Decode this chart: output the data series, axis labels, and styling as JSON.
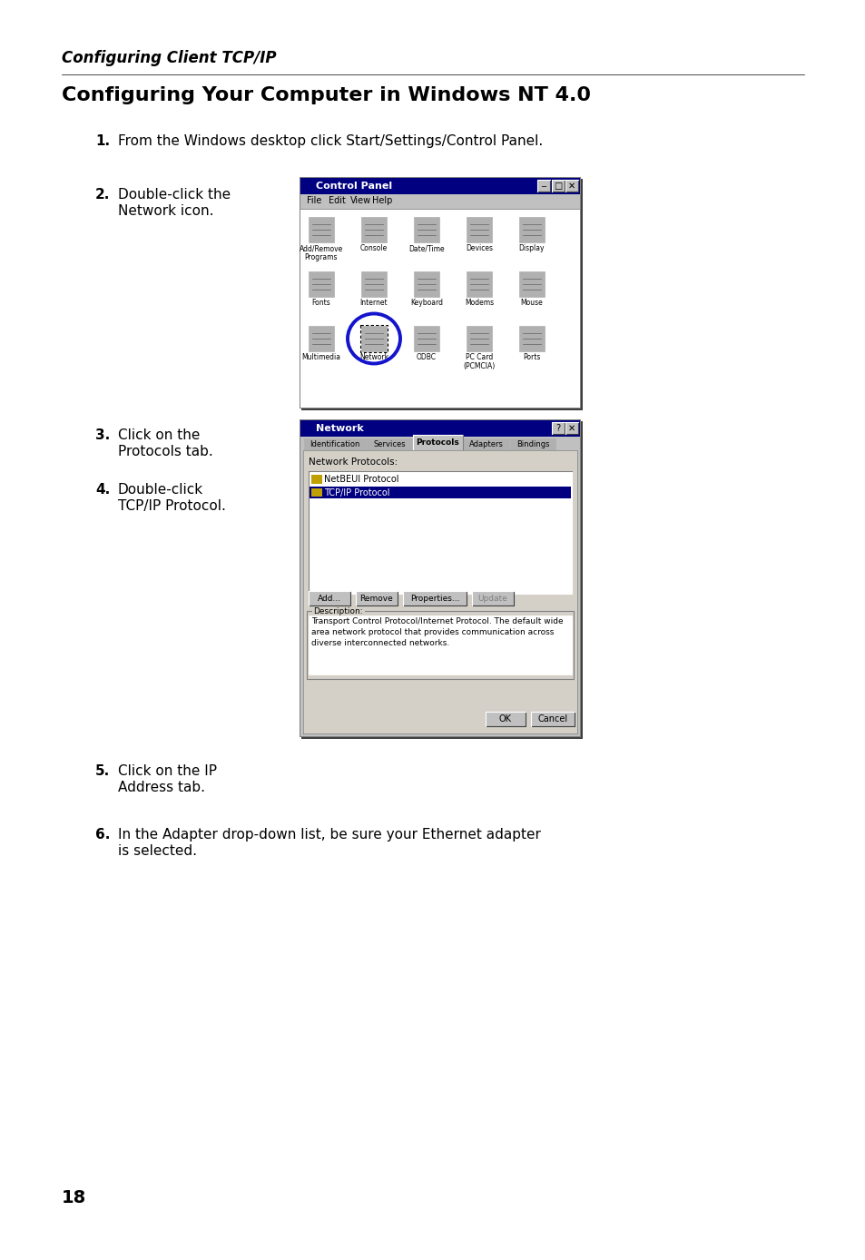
{
  "page_header": "Configuring Client TCP/IP",
  "section_title": "Configuring Your Computer in Windows NT 4.0",
  "step1": "From the Windows desktop click Start/Settings/Control Panel.",
  "step2a": "Double-click the",
  "step2b": "Network icon.",
  "step3a": "Click on the",
  "step3b": "Protocols tab.",
  "step4a": "Double-click",
  "step4b": "TCP/IP Protocol.",
  "step5a": "Click on the IP",
  "step5b": "Address tab.",
  "step6": "In the Adapter drop-down list, be sure your Ethernet adapter\nis selected.",
  "page_number": "18",
  "bg_color": "#ffffff",
  "text_color": "#000000",
  "win_blue": "#000080",
  "win_gray": "#c0c0c0",
  "win_lgray": "#d4d0c8",
  "win_dgray": "#808080"
}
